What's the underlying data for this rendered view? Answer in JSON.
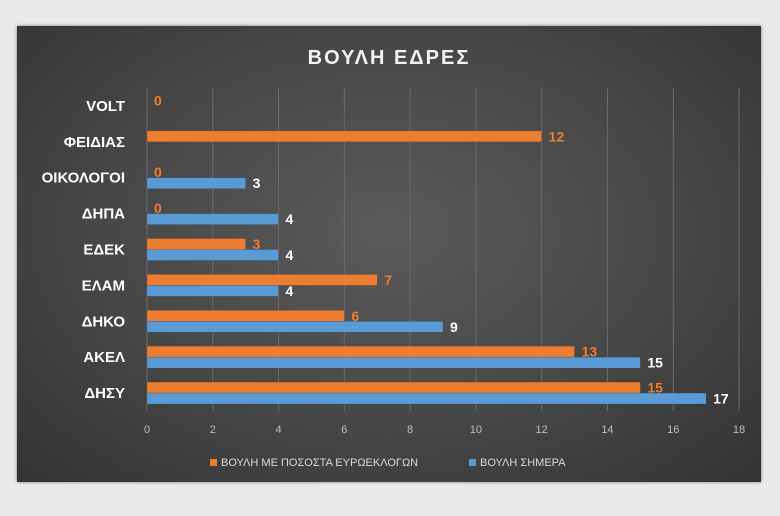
{
  "chart_data": {
    "type": "bar",
    "orientation": "horizontal",
    "title": "ΒΟΥΛΗ ΕΔΡΕΣ",
    "categories": [
      "ΔΗΣΥ",
      "ΑΚΕΛ",
      "ΔΗΚΟ",
      "ΕΛΑΜ",
      "ΕΔΕΚ",
      "ΔΗΠΑ",
      "ΟΙΚΟΛΟΓΟΙ",
      "ΦΕΙΔΙΑΣ",
      "VOLT"
    ],
    "series": [
      {
        "name": "ΒΟΥΛΗ ΜΕ ΠΟΣΟΣΤΑ ΕΥΡΩΕΚΛΟΓΩΝ",
        "color": "#ed7d31",
        "label_color": "#ed7d31",
        "values": [
          15,
          13,
          6,
          7,
          3,
          0,
          0,
          12,
          0
        ]
      },
      {
        "name": "ΒΟΥΛΗ ΣΗΜΕΡΑ",
        "color": "#5b9bd5",
        "label_color": "#ffffff",
        "values": [
          17,
          15,
          9,
          4,
          4,
          4,
          3,
          null,
          null
        ]
      }
    ],
    "xlim": [
      0,
      18
    ],
    "xticks": [
      0,
      2,
      4,
      6,
      8,
      10,
      12,
      14,
      16,
      18
    ],
    "xlabel": "",
    "ylabel": "",
    "grid": true,
    "legend_position": "bottom"
  }
}
